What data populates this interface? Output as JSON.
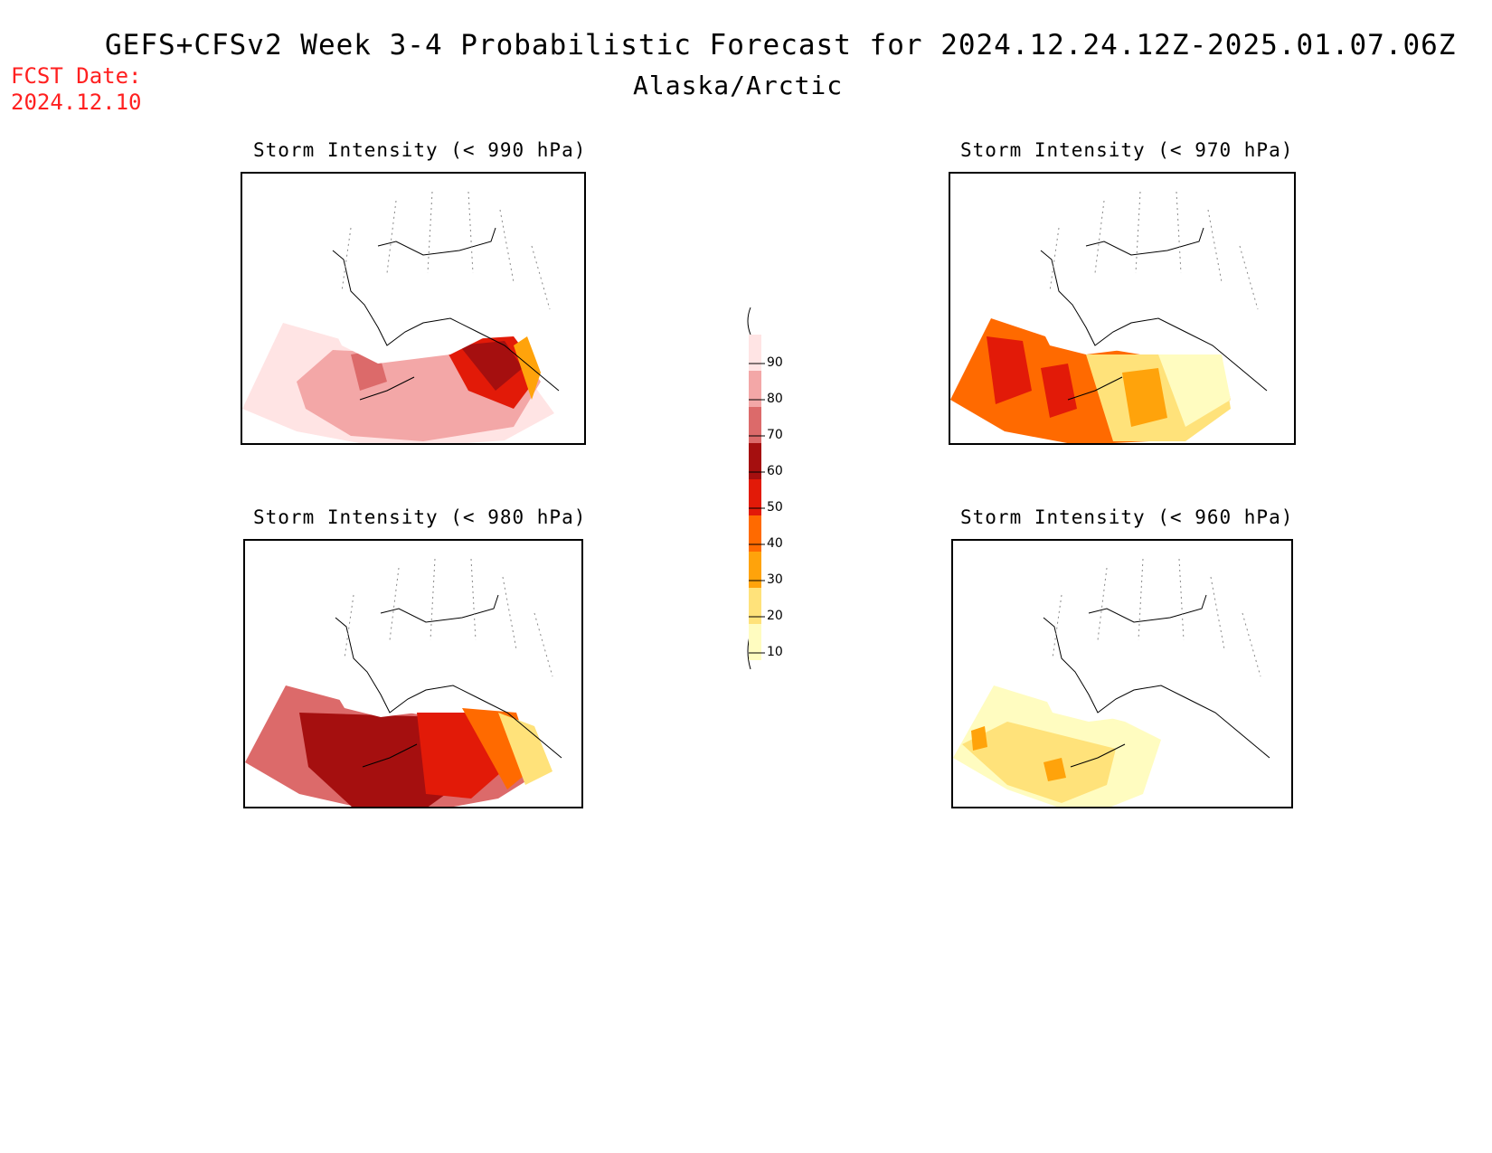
{
  "header": {
    "title": "GEFS+CFSv2 Week 3-4 Probabilistic Forecast for 2024.12.24.12Z-2025.01.07.06Z",
    "region": "Alaska/Arctic",
    "fcst_label": "FCST Date:",
    "fcst_date": "2024.12.10"
  },
  "panels": [
    {
      "id": "p990",
      "title": "Storm Intensity (< 990 hPa)",
      "dominant_category": "80-90"
    },
    {
      "id": "p970",
      "title": "Storm Intensity (< 970 hPa)",
      "dominant_category": "40-50"
    },
    {
      "id": "p980",
      "title": "Storm Intensity (< 980 hPa)",
      "dominant_category": "70-80"
    },
    {
      "id": "p960",
      "title": "Storm Intensity (< 960 hPa)",
      "dominant_category": "10-20"
    }
  ],
  "legend": {
    "labels": [
      "90",
      "80",
      "70",
      "60",
      "50",
      "40",
      "30",
      "20",
      "10"
    ],
    "colors": [
      "#ffe4e4",
      "#f3a7a7",
      "#dc6a6a",
      "#a50f0f",
      "#e21a08",
      "#ff6a00",
      "#ffa30b",
      "#ffe27a",
      "#fffcc0"
    ]
  }
}
